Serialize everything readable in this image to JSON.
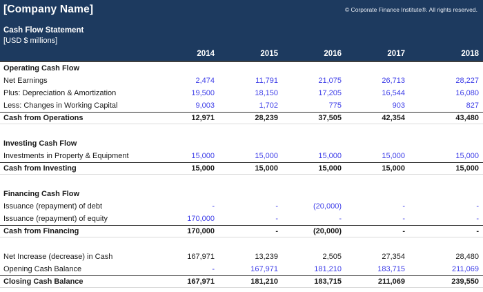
{
  "header": {
    "company_name": "[Company Name]",
    "copyright": "© Corporate Finance Institute®. All rights reserved.",
    "statement_title": "Cash Flow Statement",
    "units": "[USD $ millions]"
  },
  "columns": {
    "years": [
      "2014",
      "2015",
      "2016",
      "2017",
      "2018"
    ]
  },
  "colors": {
    "header_bg": "#1d3a5f",
    "header_text": "#ffffff",
    "input_value": "#3d3de8",
    "computed_value": "#1a1a1a",
    "total_border": "#2b2b2b"
  },
  "table": {
    "rows": [
      {
        "type": "section",
        "label": "Operating Cash Flow"
      },
      {
        "type": "item",
        "label": "Net Earnings",
        "values_color": "blue",
        "values": [
          "2,474",
          "11,791",
          "21,075",
          "26,713",
          "28,227"
        ]
      },
      {
        "type": "item",
        "label": "Plus: Depreciation & Amortization",
        "values_color": "blue",
        "values": [
          "19,500",
          "18,150",
          "17,205",
          "16,544",
          "16,080"
        ]
      },
      {
        "type": "item",
        "label": "Less: Changes in Working Capital",
        "values_color": "blue",
        "values": [
          "9,003",
          "1,702",
          "775",
          "903",
          "827"
        ]
      },
      {
        "type": "total",
        "label": "Cash from Operations",
        "values_color": "black",
        "values": [
          "12,971",
          "28,239",
          "37,505",
          "42,354",
          "43,480"
        ]
      },
      {
        "type": "blank"
      },
      {
        "type": "section",
        "label": "Investing Cash Flow"
      },
      {
        "type": "item",
        "label": "Investments in Property & Equipment",
        "values_color": "blue",
        "values": [
          "15,000",
          "15,000",
          "15,000",
          "15,000",
          "15,000"
        ]
      },
      {
        "type": "total",
        "label": "Cash from Investing",
        "values_color": "black",
        "values": [
          "15,000",
          "15,000",
          "15,000",
          "15,000",
          "15,000"
        ]
      },
      {
        "type": "blank"
      },
      {
        "type": "section",
        "label": "Financing Cash Flow"
      },
      {
        "type": "item",
        "label": "Issuance (repayment) of debt",
        "values_color": "blue",
        "values": [
          "-",
          "-",
          "(20,000)",
          "-",
          "-"
        ]
      },
      {
        "type": "item",
        "label": "Issuance (repayment) of equity",
        "values_color": "blue",
        "values": [
          "170,000",
          "-",
          "-",
          "-",
          "-"
        ]
      },
      {
        "type": "total",
        "label": "Cash from Financing",
        "values_color": "black",
        "values": [
          "170,000",
          "-",
          "(20,000)",
          "-",
          "-"
        ]
      },
      {
        "type": "blank"
      },
      {
        "type": "item",
        "label": "Net Increase (decrease) in Cash",
        "values_color": "black",
        "values": [
          "167,971",
          "13,239",
          "2,505",
          "27,354",
          "28,480"
        ]
      },
      {
        "type": "item",
        "label": "Opening Cash Balance",
        "values_color": "blue",
        "values": [
          "-",
          "167,971",
          "181,210",
          "183,715",
          "211,069"
        ]
      },
      {
        "type": "total",
        "label": "Closing Cash Balance",
        "values_color": "black",
        "values": [
          "167,971",
          "181,210",
          "183,715",
          "211,069",
          "239,550"
        ]
      }
    ]
  }
}
